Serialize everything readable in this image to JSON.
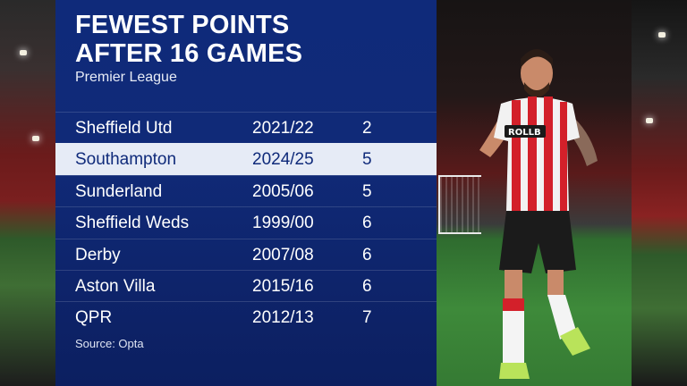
{
  "graphic": {
    "title_line1": "FEWEST POINTS",
    "title_line2": "AFTER 16 GAMES",
    "subtitle": "Premier League",
    "source": "Source: Opta",
    "accent_color": "#0f2a7a",
    "highlight_color": "#e6ebf6"
  },
  "table": {
    "rows": [
      {
        "team": "Sheffield Utd",
        "season": "2021/22",
        "points": "2"
      },
      {
        "team": "Southampton",
        "season": "2024/25",
        "points": "5",
        "highlighted": true
      },
      {
        "team": "Sunderland",
        "season": "2005/06",
        "points": "5"
      },
      {
        "team": "Sheffield Weds",
        "season": "1999/00",
        "points": "6"
      },
      {
        "team": "Derby",
        "season": "2007/08",
        "points": "6"
      },
      {
        "team": "Aston Villa",
        "season": "2015/16",
        "points": "6"
      },
      {
        "team": "QPR",
        "season": "2012/13",
        "points": "7"
      }
    ]
  },
  "photo": {
    "shirt_sponsor": "ROLLBIT",
    "description_icon": "footballer-photo"
  }
}
